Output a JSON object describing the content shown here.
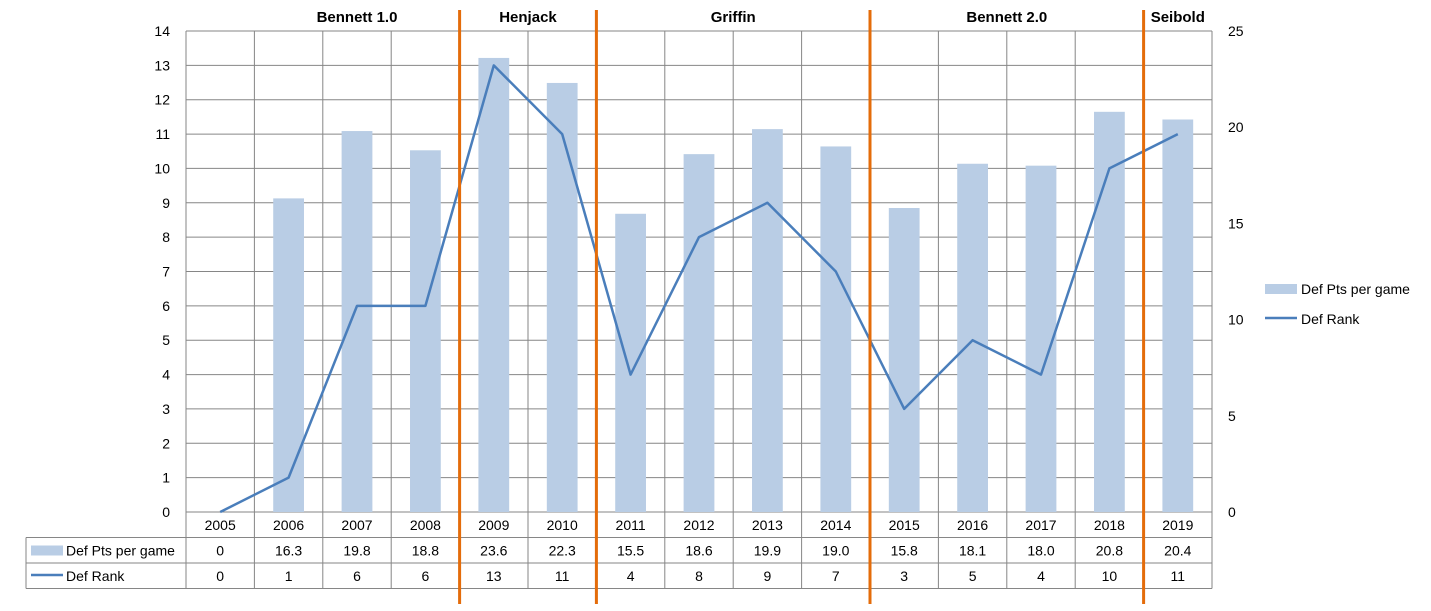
{
  "chart_data": {
    "type": "bar",
    "categories": [
      "2005",
      "2006",
      "2007",
      "2008",
      "2009",
      "2010",
      "2011",
      "2012",
      "2013",
      "2014",
      "2015",
      "2016",
      "2017",
      "2018",
      "2019"
    ],
    "series": [
      {
        "name": "Def Pts per game",
        "kind": "bar",
        "axis": "right",
        "values": [
          0,
          16.3,
          19.8,
          18.8,
          23.6,
          22.3,
          15.5,
          18.6,
          19.9,
          19.0,
          15.8,
          18.1,
          18.0,
          20.8,
          20.4
        ],
        "labels": [
          "0",
          "16.3",
          "19.8",
          "18.8",
          "23.6",
          "22.3",
          "15.5",
          "18.6",
          "19.9",
          "19.0",
          "15.8",
          "18.1",
          "18.0",
          "20.8",
          "20.4"
        ],
        "color": "#b9cde5"
      },
      {
        "name": "Def Rank",
        "kind": "line",
        "axis": "left",
        "values": [
          0,
          1,
          6,
          6,
          13,
          11,
          4,
          8,
          9,
          7,
          3,
          5,
          4,
          10,
          11
        ],
        "labels": [
          "0",
          "1",
          "6",
          "6",
          "13",
          "11",
          "4",
          "8",
          "9",
          "7",
          "3",
          "5",
          "4",
          "10",
          "11"
        ],
        "color": "#4a7ebb"
      }
    ],
    "y_left": {
      "ylim": [
        0,
        14
      ],
      "ticks": [
        "0",
        "1",
        "2",
        "3",
        "4",
        "5",
        "6",
        "7",
        "8",
        "9",
        "10",
        "11",
        "12",
        "13",
        "14"
      ]
    },
    "y_right": {
      "ylim": [
        0,
        25
      ],
      "ticks": [
        "0",
        "5",
        "10",
        "15",
        "20",
        "25"
      ]
    },
    "eras": [
      {
        "label": "Bennett 1.0",
        "start": "2006",
        "end": "2008"
      },
      {
        "label": "Henjack",
        "start": "2009",
        "end": "2010"
      },
      {
        "label": "Griffin",
        "start": "2011",
        "end": "2014"
      },
      {
        "label": "Bennett 2.0",
        "start": "2015",
        "end": "2018"
      },
      {
        "label": "Seibold",
        "start": "2019",
        "end": "2019"
      }
    ],
    "era_line_color": "#e46c0a",
    "grid": true,
    "legend_position": "right",
    "data_table": true
  }
}
